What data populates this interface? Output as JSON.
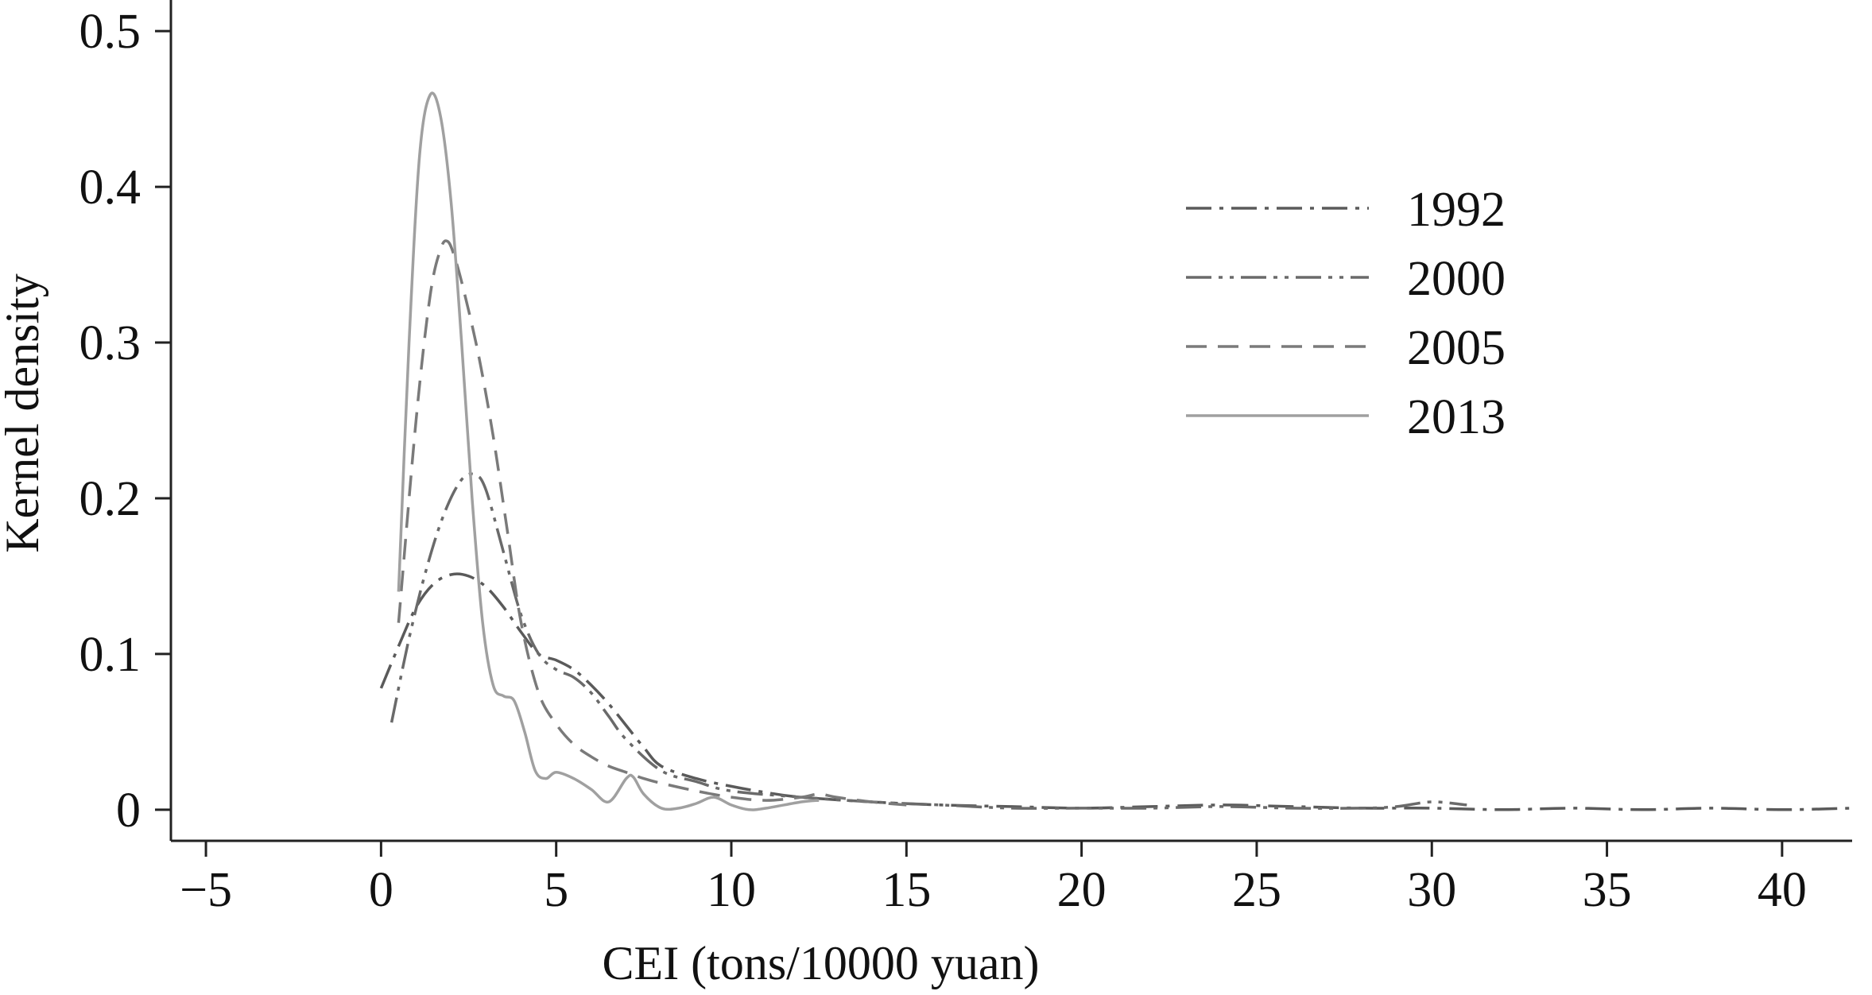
{
  "chart_data": {
    "type": "line",
    "title": "",
    "xlabel": "CEI (tons/10000 yuan)",
    "ylabel": "Kernel density",
    "xlim": [
      -6,
      42
    ],
    "ylim": [
      -0.02,
      0.52
    ],
    "xticks": [
      -5,
      0,
      5,
      10,
      15,
      20,
      25,
      30,
      35,
      40
    ],
    "xtick_labels": [
      "−5",
      "0",
      "5",
      "10",
      "15",
      "20",
      "25",
      "30",
      "35",
      "40"
    ],
    "yticks": [
      0,
      0.1,
      0.2,
      0.3,
      0.4,
      0.5
    ],
    "ytick_labels": [
      "0",
      "0.1",
      "0.2",
      "0.3",
      "0.4",
      "0.5"
    ],
    "grid": false,
    "legend_position": "top-right",
    "series": [
      {
        "name": "1992",
        "color": "#5a5a5a",
        "style": "dash-dot",
        "x": [
          0.0,
          0.5,
          1.0,
          1.5,
          2.0,
          2.5,
          3.0,
          3.5,
          4.0,
          4.5,
          5.0,
          5.5,
          6.0,
          6.5,
          7.0,
          7.5,
          8.0,
          9.0,
          10.0,
          11.0,
          12.0,
          14.0,
          16.0,
          18.0,
          20.0,
          22.0,
          24.0,
          26.0,
          28.0,
          30.0,
          32.0,
          34.0,
          36.0,
          38.0,
          40.0,
          42.0
        ],
        "y": [
          0.078,
          0.105,
          0.13,
          0.145,
          0.151,
          0.15,
          0.143,
          0.13,
          0.114,
          0.1,
          0.096,
          0.09,
          0.08,
          0.068,
          0.054,
          0.04,
          0.028,
          0.02,
          0.015,
          0.011,
          0.008,
          0.005,
          0.003,
          0.002,
          0.001,
          0.002,
          0.003,
          0.002,
          0.001,
          0.001,
          0.0,
          0.001,
          0.0,
          0.001,
          0.0,
          0.001
        ]
      },
      {
        "name": "2000",
        "color": "#6a6a6a",
        "style": "dash-dot-dot",
        "x": [
          0.3,
          0.8,
          1.3,
          1.8,
          2.3,
          2.7,
          3.0,
          3.5,
          4.0,
          4.5,
          5.0,
          5.5,
          6.0,
          6.5,
          7.0,
          8.0,
          9.0,
          10.0,
          12.0,
          14.0,
          16.0,
          18.0,
          20.0,
          22.0,
          24.0,
          26.0,
          28.0,
          29.0,
          30.0,
          31.0
        ],
        "y": [
          0.056,
          0.11,
          0.155,
          0.19,
          0.212,
          0.215,
          0.205,
          0.165,
          0.125,
          0.1,
          0.09,
          0.085,
          0.075,
          0.06,
          0.045,
          0.025,
          0.018,
          0.012,
          0.008,
          0.005,
          0.003,
          0.001,
          0.001,
          0.001,
          0.002,
          0.001,
          0.001,
          0.002,
          0.005,
          0.003
        ]
      },
      {
        "name": "2005",
        "color": "#7a7a7a",
        "style": "dashed",
        "x": [
          0.5,
          1.0,
          1.4,
          1.7,
          1.9,
          2.1,
          2.4,
          2.8,
          3.2,
          3.6,
          4.0,
          4.5,
          5.0,
          5.5,
          6.0,
          6.5,
          7.0,
          7.5,
          8.0,
          9.0,
          10.0,
          11.0,
          12.0,
          12.5,
          13.0,
          14.0,
          15.0
        ],
        "y": [
          0.12,
          0.25,
          0.33,
          0.36,
          0.365,
          0.355,
          0.33,
          0.29,
          0.24,
          0.18,
          0.12,
          0.075,
          0.055,
          0.042,
          0.034,
          0.028,
          0.024,
          0.02,
          0.017,
          0.012,
          0.008,
          0.006,
          0.008,
          0.01,
          0.008,
          0.005,
          0.003
        ]
      },
      {
        "name": "2013",
        "color": "#a0a0a0",
        "style": "solid",
        "x": [
          0.5,
          0.8,
          1.1,
          1.4,
          1.7,
          2.0,
          2.3,
          2.6,
          2.9,
          3.2,
          3.5,
          3.8,
          4.1,
          4.4,
          4.7,
          5.0,
          5.5,
          6.0,
          6.5,
          7.0,
          7.2,
          7.5,
          8.0,
          8.5,
          9.0,
          9.5,
          10.0,
          10.5,
          11.0,
          12.0,
          12.5
        ],
        "y": [
          0.14,
          0.3,
          0.42,
          0.459,
          0.445,
          0.39,
          0.3,
          0.2,
          0.12,
          0.08,
          0.073,
          0.07,
          0.05,
          0.025,
          0.02,
          0.024,
          0.02,
          0.013,
          0.005,
          0.02,
          0.021,
          0.01,
          0.001,
          0.001,
          0.004,
          0.008,
          0.003,
          0.0,
          0.001,
          0.005,
          0.006
        ]
      }
    ]
  }
}
